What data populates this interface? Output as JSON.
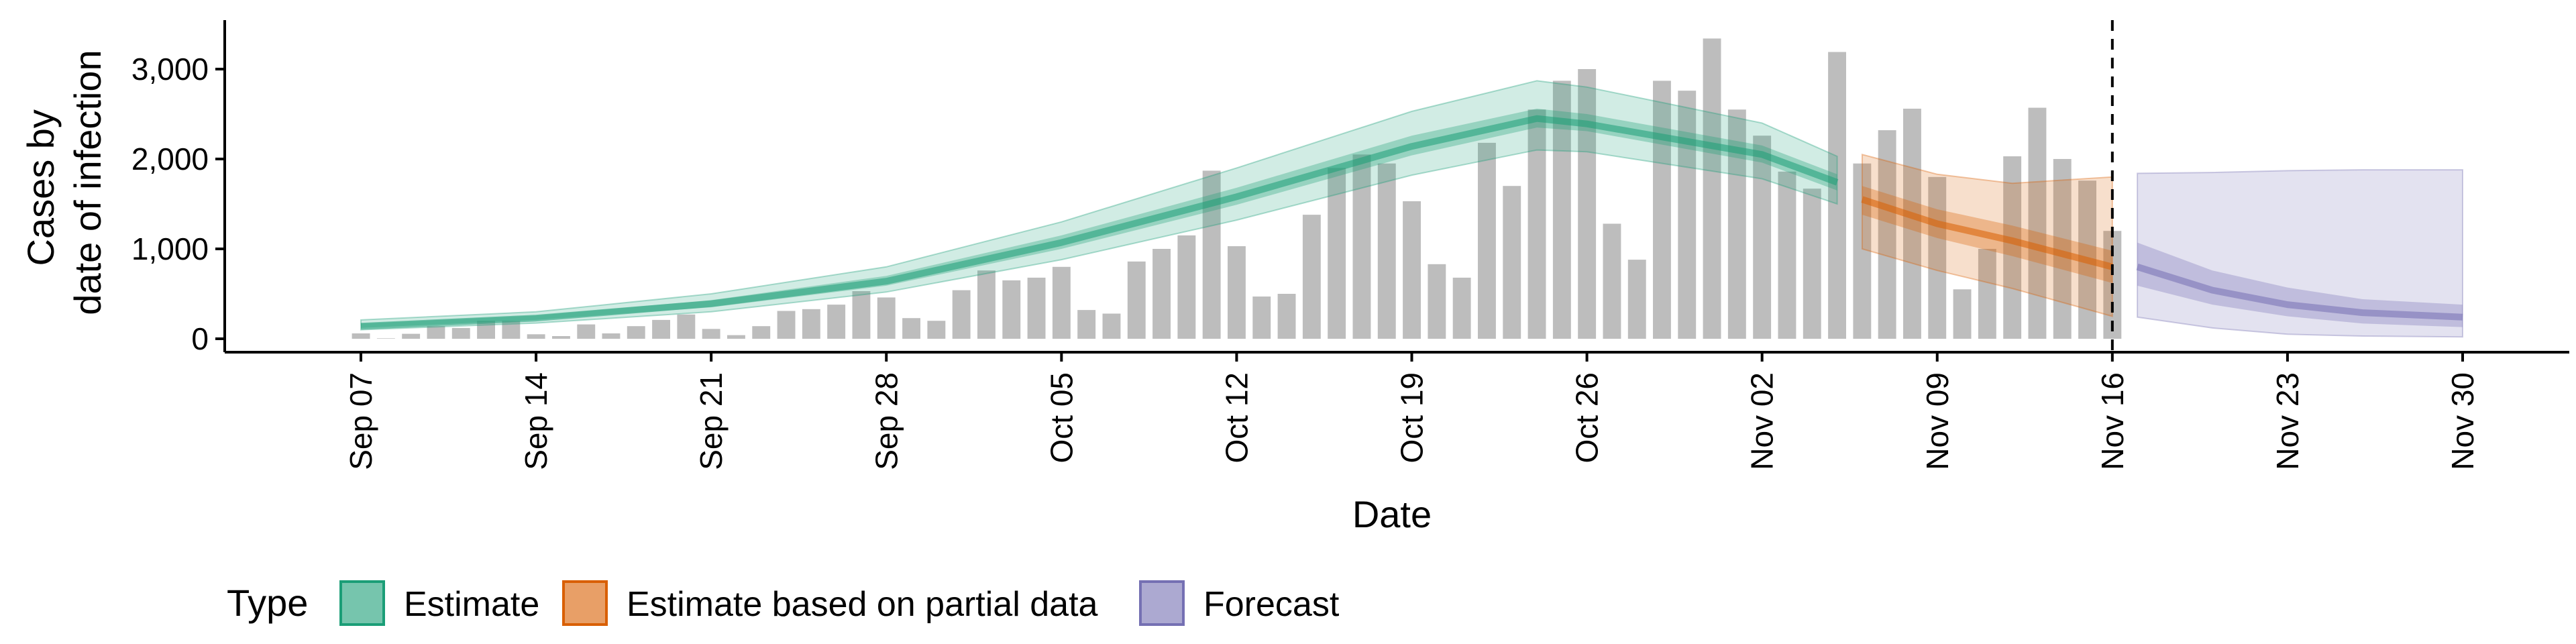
{
  "chart_data": {
    "type": "bar",
    "xlabel": "Date",
    "ylabel": [
      "Cases by",
      "date of infection"
    ],
    "ylim": [
      0,
      3500
    ],
    "y_ticks": [
      0,
      1000,
      2000,
      3000
    ],
    "y_tick_labels": [
      "0",
      "1,000",
      "2,000",
      "3,000"
    ],
    "x_range": [
      "2020-09-05",
      "2020-11-30"
    ],
    "x_ticks": [
      "2020-09-07",
      "2020-09-14",
      "2020-09-21",
      "2020-09-28",
      "2020-10-05",
      "2020-10-12",
      "2020-10-19",
      "2020-10-26",
      "2020-11-02",
      "2020-11-09",
      "2020-11-16",
      "2020-11-23",
      "2020-11-30"
    ],
    "x_tick_labels": [
      "Sep 07",
      "Sep 14",
      "Sep 21",
      "Sep 28",
      "Oct 05",
      "Oct 12",
      "Oct 19",
      "Oct 26",
      "Nov 02",
      "Nov 09",
      "Nov 16",
      "Nov 23",
      "Nov 30"
    ],
    "forecast_boundary": "2020-11-16",
    "grid": false,
    "bars": {
      "start_date": "2020-09-07",
      "color": "#bdbdbd",
      "values": [
        60,
        5,
        55,
        140,
        120,
        200,
        200,
        50,
        30,
        160,
        60,
        140,
        210,
        270,
        110,
        40,
        140,
        310,
        330,
        380,
        530,
        460,
        230,
        200,
        540,
        760,
        650,
        680,
        800,
        320,
        280,
        860,
        1000,
        1150,
        1870,
        1030,
        470,
        500,
        1380,
        1900,
        2050,
        1950,
        1530,
        830,
        680,
        2180,
        1700,
        2550,
        2870,
        3000,
        1280,
        880,
        2870,
        2760,
        3340,
        2550,
        2260,
        1860,
        1670,
        3190,
        1950,
        2320,
        2560,
        1800,
        550,
        1000,
        2030,
        2570,
        2000,
        1760,
        1200
      ]
    },
    "series": [
      {
        "name": "Estimate",
        "color": "#1b9e77",
        "dates": [
          "2020-09-07",
          "2020-09-14",
          "2020-09-21",
          "2020-09-28",
          "2020-10-05",
          "2020-10-12",
          "2020-10-19",
          "2020-10-24",
          "2020-10-26",
          "2020-11-02",
          "2020-11-05"
        ],
        "median": [
          140,
          230,
          390,
          640,
          1070,
          1580,
          2140,
          2450,
          2390,
          2050,
          1740
        ],
        "lower50": [
          120,
          210,
          350,
          590,
          1000,
          1490,
          2040,
          2350,
          2310,
          1960,
          1650
        ],
        "upper50": [
          170,
          260,
          430,
          700,
          1150,
          1680,
          2260,
          2560,
          2500,
          2150,
          1830
        ],
        "lower90": [
          100,
          175,
          300,
          520,
          880,
          1320,
          1820,
          2100,
          2080,
          1780,
          1500
        ],
        "upper90": [
          210,
          300,
          500,
          800,
          1300,
          1900,
          2530,
          2870,
          2800,
          2400,
          2030
        ]
      },
      {
        "name": "Estimate based on partial data",
        "color": "#d95f02",
        "dates": [
          "2020-11-06",
          "2020-11-09",
          "2020-11-12",
          "2020-11-16"
        ],
        "median": [
          1550,
          1280,
          1090,
          800
        ],
        "lower50": [
          1380,
          1120,
          920,
          620
        ],
        "upper50": [
          1700,
          1440,
          1260,
          980
        ],
        "lower90": [
          1000,
          760,
          560,
          250
        ],
        "upper90": [
          2050,
          1830,
          1730,
          1800
        ]
      },
      {
        "name": "Forecast",
        "color": "#7570b3",
        "dates": [
          "2020-11-17",
          "2020-11-20",
          "2020-11-23",
          "2020-11-26",
          "2020-11-30"
        ],
        "median": [
          800,
          540,
          380,
          290,
          240
        ],
        "lower50": [
          590,
          380,
          250,
          170,
          130
        ],
        "upper50": [
          1070,
          760,
          570,
          440,
          380
        ],
        "lower90": [
          240,
          120,
          50,
          30,
          20
        ],
        "upper90": [
          1840,
          1850,
          1870,
          1880,
          1880
        ]
      }
    ],
    "legend": {
      "title": "Type",
      "position": "bottom",
      "entries": [
        "Estimate",
        "Estimate based on partial data",
        "Forecast"
      ]
    }
  }
}
